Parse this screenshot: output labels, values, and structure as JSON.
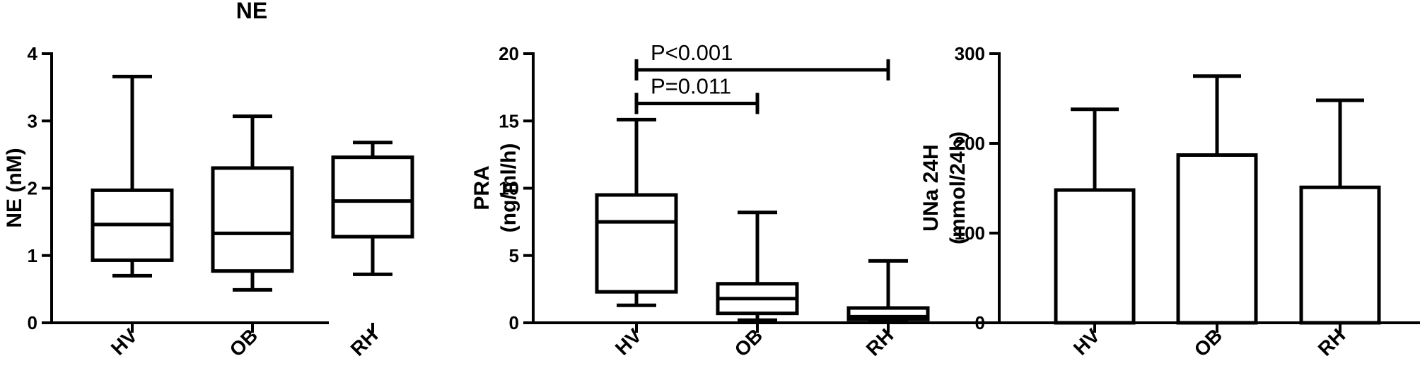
{
  "chart_data": [
    {
      "type": "box",
      "title": "NE",
      "ylabel": [
        "NE (nM)"
      ],
      "ylim": [
        0,
        4
      ],
      "yticks": [
        0,
        1,
        2,
        3,
        4
      ],
      "categories": [
        "HV",
        "OB",
        "RH"
      ],
      "boxes": [
        {
          "category": "HV",
          "min": 0.7,
          "q1": 0.93,
          "median": 1.46,
          "q3": 1.97,
          "max": 3.66
        },
        {
          "category": "OB",
          "min": 0.49,
          "q1": 0.77,
          "median": 1.33,
          "q3": 2.3,
          "max": 3.07
        },
        {
          "category": "RH",
          "min": 0.72,
          "q1": 1.28,
          "median": 1.81,
          "q3": 2.46,
          "max": 2.68
        }
      ]
    },
    {
      "type": "box",
      "title": "",
      "ylabel": [
        "PRA",
        "(ng/ml/h)"
      ],
      "ylim": [
        0,
        20
      ],
      "yticks": [
        0,
        5,
        10,
        15,
        20
      ],
      "categories": [
        "HV",
        "OB",
        "RH"
      ],
      "boxes": [
        {
          "category": "HV",
          "min": 1.3,
          "q1": 2.3,
          "median": 7.5,
          "q3": 9.5,
          "max": 15.1
        },
        {
          "category": "OB",
          "min": 0.2,
          "q1": 0.7,
          "median": 1.8,
          "q3": 2.9,
          "max": 8.2
        },
        {
          "category": "RH",
          "min": 0.05,
          "q1": 0.25,
          "median": 0.45,
          "q3": 1.1,
          "max": 4.6
        }
      ],
      "annotations": [
        {
          "text": "P=0.011",
          "from": "HV",
          "to": "OB",
          "y": 16.3
        },
        {
          "text": "P<0.001",
          "from": "HV",
          "to": "RH",
          "y": 18.8
        }
      ]
    },
    {
      "type": "bar",
      "title": "",
      "ylabel": [
        "UNa 24H",
        "(mmol/24h)"
      ],
      "ylim": [
        0,
        300
      ],
      "yticks": [
        0,
        100,
        200,
        300
      ],
      "categories": [
        "HV",
        "OB",
        "RH"
      ],
      "values": [
        148,
        187,
        151
      ],
      "error_upper": [
        238,
        275,
        248
      ]
    }
  ]
}
